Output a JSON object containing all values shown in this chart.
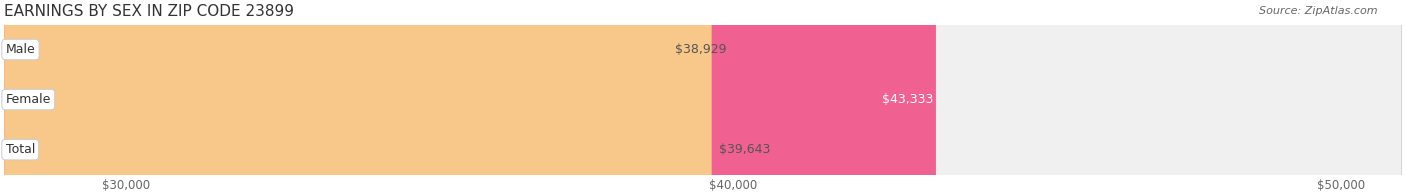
{
  "title": "EARNINGS BY SEX IN ZIP CODE 23899",
  "source": "Source: ZipAtlas.com",
  "categories": [
    "Male",
    "Female",
    "Total"
  ],
  "values": [
    38929,
    43333,
    39643
  ],
  "bar_colors": [
    "#add8f0",
    "#f06090",
    "#f7c88a"
  ],
  "bar_bg_color": "#f0f0f0",
  "label_colors": [
    "#555555",
    "#ffffff",
    "#555555"
  ],
  "xmin": 28000,
  "xmax": 51000,
  "xticks": [
    30000,
    40000,
    50000
  ],
  "xtick_labels": [
    "$30,000",
    "$40,000",
    "$50,000"
  ],
  "bar_height": 0.55,
  "figsize": [
    14.06,
    1.96
  ],
  "dpi": 100,
  "title_fontsize": 11,
  "label_fontsize": 9,
  "tick_fontsize": 8.5,
  "source_fontsize": 8
}
